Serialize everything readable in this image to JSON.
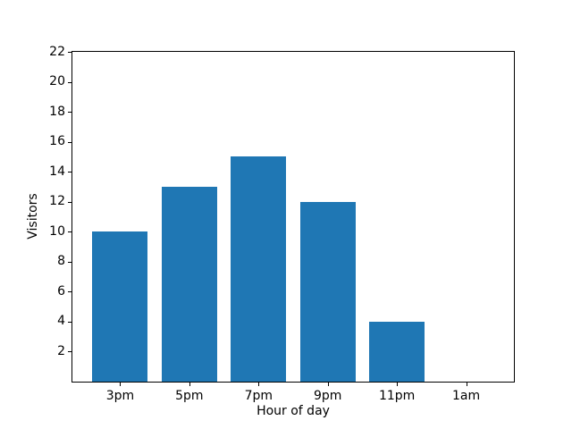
{
  "chart_data": {
    "type": "bar",
    "title": "",
    "xlabel": "Hour of day",
    "ylabel": "Visitors",
    "categories": [
      "3pm",
      "5pm",
      "7pm",
      "9pm",
      "11pm",
      "1am"
    ],
    "values": [
      10,
      13,
      15,
      12,
      4,
      0
    ],
    "ylim": [
      0,
      22
    ],
    "yticks": [
      2,
      4,
      6,
      8,
      10,
      12,
      14,
      16,
      18,
      20,
      22
    ],
    "bar_width_fraction": 0.8,
    "x_margin_fraction": 0.05,
    "grid": false,
    "legend": "none",
    "colors": {
      "bar": "#1f77b4",
      "axis": "#000000",
      "text": "#000000",
      "background": "#ffffff"
    }
  }
}
